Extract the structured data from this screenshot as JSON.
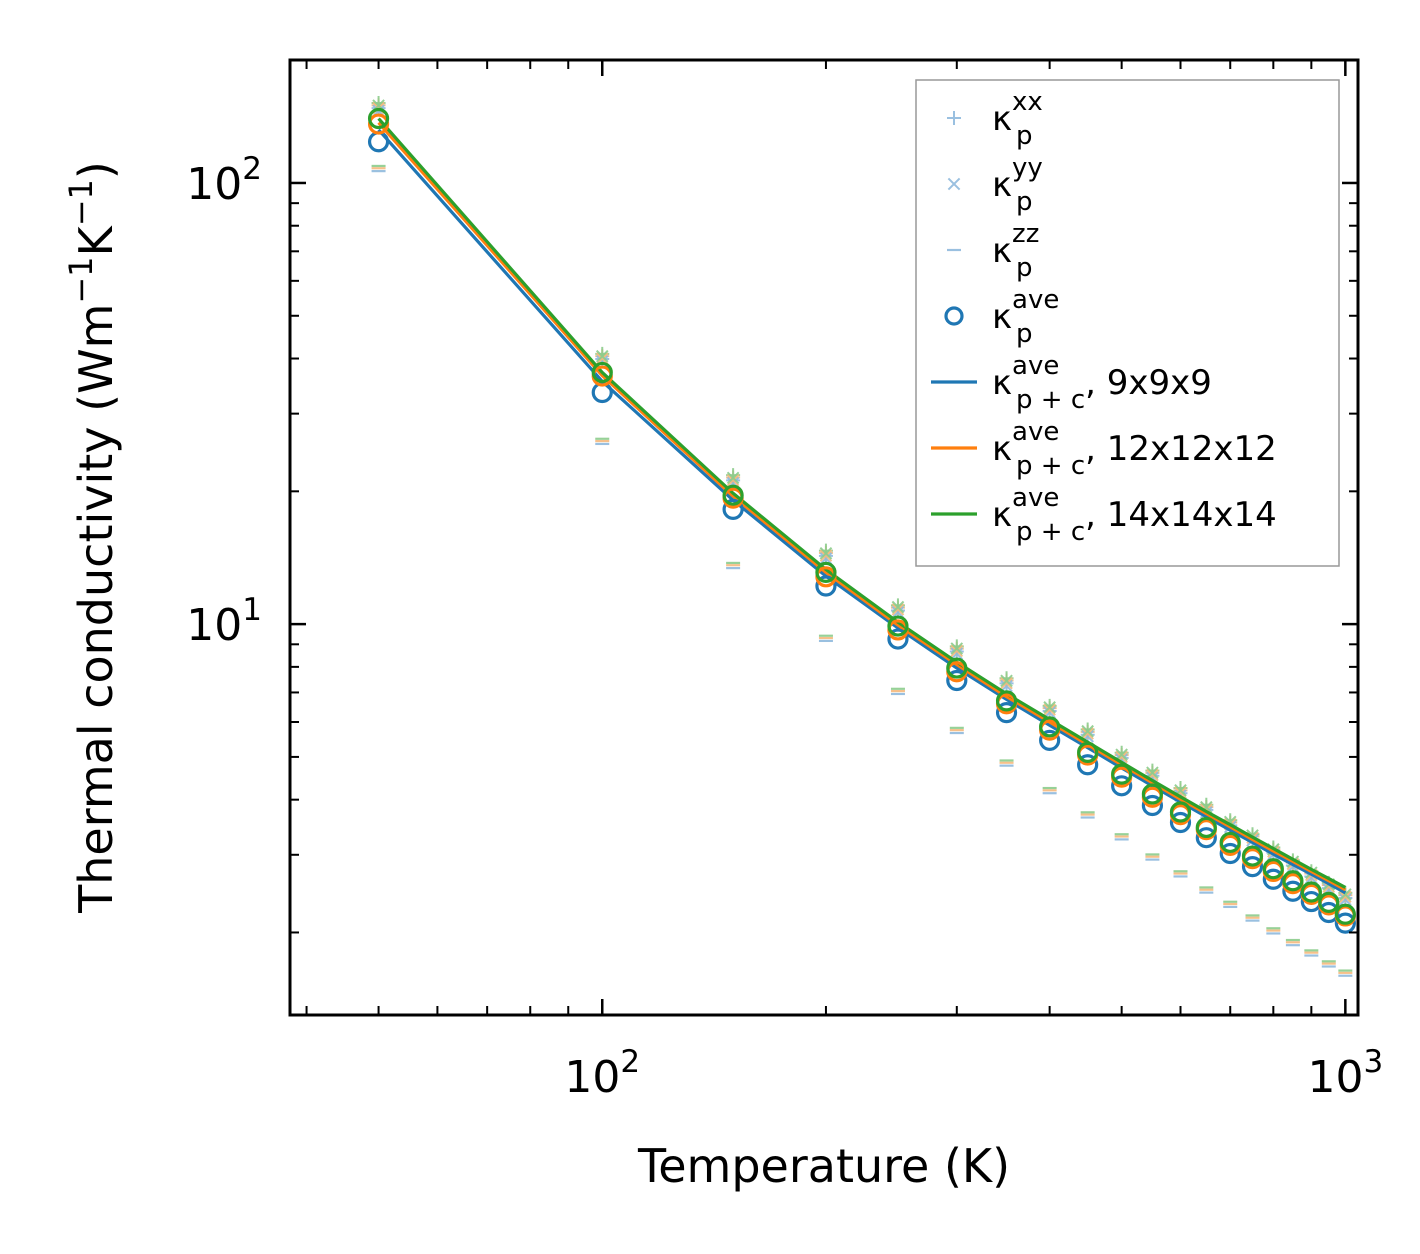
{
  "chart_data": {
    "type": "line",
    "title": "",
    "xlabel": "Temperature (K)",
    "ylabel_main": "Thermal conductivity (Wm",
    "ylabel_sup1": "−1",
    "ylabel_mid": "K",
    "ylabel_sup2": "−1",
    "ylabel_end": ")",
    "xscale": "log",
    "yscale": "log",
    "xlim": [
      38,
      1040
    ],
    "ylim": [
      1.3,
      190
    ],
    "x_tick_labels": [
      {
        "base": "10",
        "exp": "2",
        "value": 100
      },
      {
        "base": "10",
        "exp": "3",
        "value": 1000
      }
    ],
    "y_tick_labels": [
      {
        "base": "10",
        "exp": "1",
        "value": 10
      },
      {
        "base": "10",
        "exp": "2",
        "value": 100
      }
    ],
    "legend_position": "top-right",
    "x": [
      50,
      100,
      150,
      200,
      250,
      300,
      350,
      400,
      450,
      500,
      550,
      600,
      650,
      700,
      750,
      800,
      850,
      900,
      950,
      1000
    ],
    "series": [
      {
        "name": "kp_xx",
        "label_base": "κ",
        "label_sub": "p",
        "label_sup": "xx",
        "label_suffix": "",
        "marker": "plus",
        "color": "#8fb9dd",
        "values": [
          150,
          40.5,
          21.5,
          14.5,
          10.9,
          8.8,
          7.45,
          6.45,
          5.7,
          5.05,
          4.6,
          4.2,
          3.85,
          3.55,
          3.3,
          3.08,
          2.88,
          2.72,
          2.56,
          2.43
        ]
      },
      {
        "name": "kp_yy",
        "label_base": "κ",
        "label_sub": "p",
        "label_sup": "yy",
        "label_suffix": "",
        "marker": "x",
        "color": "#8fb9dd",
        "values": [
          148,
          40,
          21.2,
          14.3,
          10.8,
          8.7,
          7.35,
          6.4,
          5.65,
          5.0,
          4.55,
          4.15,
          3.8,
          3.52,
          3.28,
          3.05,
          2.86,
          2.7,
          2.54,
          2.41
        ]
      },
      {
        "name": "kp_zz",
        "label_base": "κ",
        "label_sub": "p",
        "label_sup": "zz",
        "label_suffix": "",
        "marker": "dash",
        "color": "#8fb9dd",
        "values": [
          108,
          26,
          13.6,
          9.3,
          7.05,
          5.75,
          4.85,
          4.2,
          3.7,
          3.3,
          2.97,
          2.72,
          2.5,
          2.32,
          2.16,
          2.02,
          1.9,
          1.8,
          1.7,
          1.62
        ]
      },
      {
        "name": "kp_ave",
        "label_base": "κ",
        "label_sub": "p",
        "label_sup": "ave",
        "label_suffix": "",
        "marker": "circle",
        "color": "#1f77b4",
        "values": [
          124,
          33.5,
          18.2,
          12.2,
          9.25,
          7.45,
          6.3,
          5.45,
          4.8,
          4.3,
          3.88,
          3.55,
          3.28,
          3.02,
          2.82,
          2.64,
          2.48,
          2.35,
          2.22,
          2.1
        ]
      },
      {
        "name": "kp_ave_orange",
        "label_base": "",
        "label_sub": "",
        "label_sup": "",
        "label_suffix": "",
        "marker": "circle",
        "color": "#ff7f0e",
        "values": [
          136,
          36.5,
          19.3,
          12.8,
          9.7,
          7.8,
          6.6,
          5.75,
          5.05,
          4.5,
          4.05,
          3.7,
          3.42,
          3.15,
          2.94,
          2.75,
          2.58,
          2.44,
          2.31,
          2.18
        ]
      },
      {
        "name": "kp_ave_green",
        "label_base": "",
        "label_sub": "",
        "label_sup": "",
        "label_suffix": "",
        "marker": "circle",
        "color": "#2ca02c",
        "values": [
          140,
          37.2,
          19.6,
          13.1,
          9.9,
          7.95,
          6.7,
          5.85,
          5.12,
          4.57,
          4.12,
          3.75,
          3.46,
          3.2,
          2.98,
          2.79,
          2.62,
          2.47,
          2.34,
          2.2
        ]
      },
      {
        "name": "kpc_9",
        "label_base": "κ",
        "label_sub": "p + c",
        "label_sup": "ave",
        "label_suffix": ", 9x9x9",
        "marker": "line",
        "color": "#1f77b4",
        "values": [
          132,
          35.5,
          19.1,
          12.85,
          9.8,
          7.95,
          6.75,
          5.9,
          5.25,
          4.72,
          4.3,
          3.95,
          3.66,
          3.41,
          3.2,
          3.01,
          2.85,
          2.71,
          2.58,
          2.46
        ]
      },
      {
        "name": "kpc_12",
        "label_base": "κ",
        "label_sub": "p + c",
        "label_sup": "ave",
        "label_suffix": ", 12x12x12",
        "marker": "line",
        "color": "#ff7f0e",
        "values": [
          137,
          36.6,
          19.5,
          13.1,
          9.95,
          8.1,
          6.85,
          6.0,
          5.33,
          4.8,
          4.37,
          4.01,
          3.72,
          3.47,
          3.25,
          3.06,
          2.9,
          2.75,
          2.62,
          2.5
        ]
      },
      {
        "name": "kpc_14",
        "label_base": "κ",
        "label_sub": "p + c",
        "label_sup": "ave",
        "label_suffix": ", 14x14x14",
        "marker": "line",
        "color": "#2ca02c",
        "values": [
          140,
          37.2,
          19.8,
          13.3,
          10.1,
          8.2,
          6.95,
          6.08,
          5.4,
          4.86,
          4.42,
          4.06,
          3.76,
          3.51,
          3.29,
          3.1,
          2.93,
          2.78,
          2.65,
          2.53
        ]
      }
    ]
  }
}
